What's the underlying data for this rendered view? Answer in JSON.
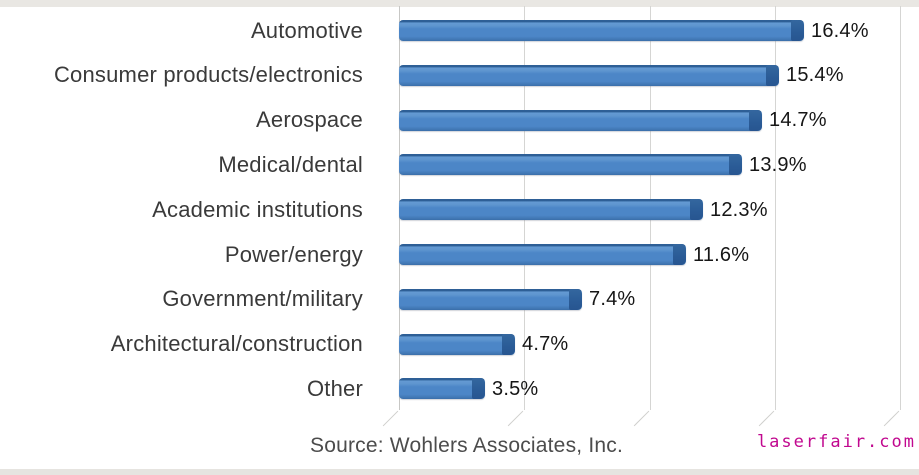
{
  "chart_data": {
    "type": "bar",
    "orientation": "horizontal",
    "style": "3d-excel",
    "title": "",
    "xlabel": "",
    "ylabel": "",
    "categories": [
      "Automotive",
      "Consumer products/electronics",
      "Aerospace",
      "Medical/dental",
      "Academic institutions",
      "Power/energy",
      "Government/military",
      "Architectural/construction",
      "Other"
    ],
    "values": [
      16.4,
      15.4,
      14.7,
      13.9,
      12.3,
      11.6,
      7.4,
      4.7,
      3.5
    ],
    "value_label_suffix": "%",
    "xlim": [
      0,
      20
    ],
    "gridline_values": [
      0,
      5,
      10,
      15,
      20
    ],
    "grid": true,
    "legend": false,
    "colors": {
      "bar_fill": "#4c86c7",
      "bar_top_edge": "#2e5f96",
      "bar_end_cap": "#2b5c97",
      "gridline": "#d5d5d3",
      "category_text": "#3a3a3a",
      "value_text": "#161616"
    }
  },
  "footer": {
    "source_text": "Source: Wohlers Associates, Inc."
  },
  "watermark": {
    "text": "laserfair.com",
    "color": "#c1088f"
  }
}
